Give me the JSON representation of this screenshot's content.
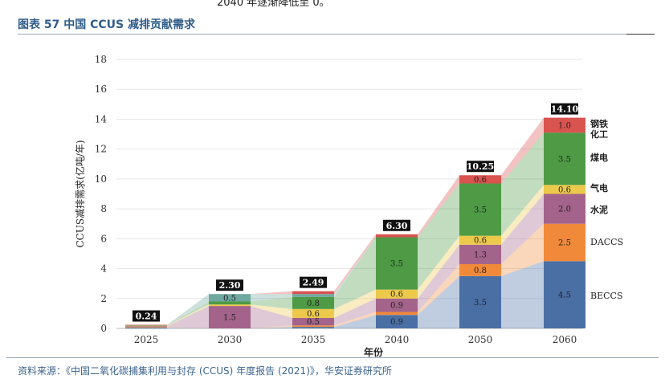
{
  "header": {
    "top_text": "2040 年逐渐降低至 0。",
    "figure_title": "图表 57 中国 CCUS 减排贡献需求"
  },
  "source": "资料来源：《中国二氧化碳捕集利用与封存 (CCUS) 年度报告 (2021)》，华安证券研究所",
  "chart_data": {
    "type": "bar",
    "stacked": true,
    "categories": [
      "2025",
      "2030",
      "2035",
      "2040",
      "2050",
      "2060"
    ],
    "xlabel": "年份",
    "ylabel": "CCUS减排需求(亿吨/年)",
    "ylim": [
      0,
      18
    ],
    "yticks": [
      0,
      2,
      4,
      6,
      8,
      10,
      12,
      14,
      16,
      18
    ],
    "grid": true,
    "totals": [
      "0.24",
      "2.30",
      "2.49",
      "6.30",
      "10.25",
      "14.10"
    ],
    "series": [
      {
        "name": "BECCS",
        "color": "#4a6fa5",
        "values": [
          0.06,
          0.0,
          0.1,
          0.9,
          3.5,
          4.5
        ],
        "labels": [
          "",
          "",
          "",
          "0.9",
          "3.5",
          "4.5"
        ]
      },
      {
        "name": "DACCS",
        "color": "#f08a3a",
        "values": [
          0.04,
          0.0,
          0.1,
          0.2,
          0.8,
          2.5
        ],
        "labels": [
          "",
          "",
          "",
          "",
          "0.8",
          "2.5"
        ]
      },
      {
        "name": "水泥",
        "color": "#a3638a",
        "values": [
          0.05,
          1.5,
          0.5,
          0.9,
          1.3,
          2.0
        ],
        "labels": [
          "",
          "1.5",
          "0.5",
          "0.9",
          "1.3",
          "2.0"
        ]
      },
      {
        "name": "气电",
        "color": "#ecc94b",
        "values": [
          0.03,
          0.1,
          0.6,
          0.6,
          0.6,
          0.6
        ],
        "labels": [
          "",
          "",
          "0.6",
          "0.6",
          "0.6",
          "0.6"
        ]
      },
      {
        "name": "煤电",
        "color": "#4e9a45",
        "values": [
          0.04,
          0.2,
          0.8,
          3.5,
          3.5,
          3.5
        ],
        "labels": [
          "",
          "",
          "0.8",
          "3.5",
          "3.5",
          "3.5"
        ]
      },
      {
        "name": "化工",
        "color": "#6fa8a0",
        "values": [
          0.01,
          0.5,
          0.2,
          0.0,
          0.0,
          0.0
        ],
        "labels": [
          "",
          "0.5",
          "",
          "",
          "",
          ""
        ]
      },
      {
        "name": "钢铁",
        "color": "#d9534f",
        "values": [
          0.01,
          0.0,
          0.19,
          0.2,
          0.55,
          1.0
        ],
        "labels": [
          "",
          "",
          "",
          "",
          "0.6",
          "1.0"
        ]
      }
    ],
    "legend_order": [
      "钢铁",
      "化工",
      "煤电",
      "气电",
      "水泥",
      "DACCS",
      "BECCS"
    ]
  }
}
